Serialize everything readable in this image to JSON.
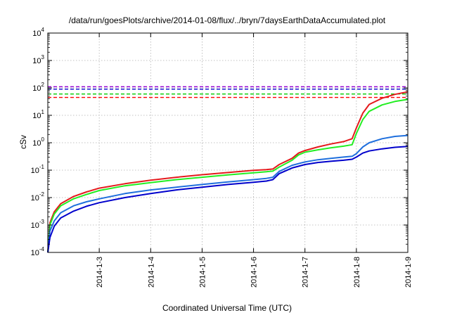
{
  "chart_data": {
    "type": "line",
    "title": "/data/run/goesPlots/archive/2014-01-08/flux/../bryn/7daysEarthDataAccumulated.plot",
    "xlabel": "Coordinated Universal Time (UTC)",
    "ylabel": "cSv",
    "x_range": [
      "2014-01-02",
      "2014-01-09"
    ],
    "x_ticks": [
      "2014-1-3",
      "2014-1-4",
      "2014-1-5",
      "2014-1-6",
      "2014-1-7",
      "2014-1-8",
      "2014-1-9"
    ],
    "y_scale": "log",
    "y_range": [
      0.0001,
      10000
    ],
    "y_ticks": [
      {
        "base": "10",
        "exp": "-4"
      },
      {
        "base": "10",
        "exp": "-3"
      },
      {
        "base": "10",
        "exp": "-2"
      },
      {
        "base": "10",
        "exp": "-1"
      },
      {
        "base": "10",
        "exp": "0"
      },
      {
        "base": "10",
        "exp": "1"
      },
      {
        "base": "10",
        "exp": "2"
      },
      {
        "base": "10",
        "exp": "3"
      },
      {
        "base": "10",
        "exp": "4"
      }
    ],
    "grid": true,
    "thresholds": [
      {
        "value": 110,
        "color": "#9400d3"
      },
      {
        "value": 90,
        "color": "#0000cc"
      },
      {
        "value": 60,
        "color": "#00cc00"
      },
      {
        "value": 45,
        "color": "#ff0000"
      }
    ],
    "series": [
      {
        "color": "#e41a1c",
        "points": [
          [
            "2014-01-02T00:00",
            0.0001
          ],
          [
            "2014-01-02T01:00",
            0.0012
          ],
          [
            "2014-01-02T03:00",
            0.003
          ],
          [
            "2014-01-02T06:00",
            0.006
          ],
          [
            "2014-01-02T12:00",
            0.011
          ],
          [
            "2014-01-02T18:00",
            0.016
          ],
          [
            "2014-01-03T00:00",
            0.022
          ],
          [
            "2014-01-03T12:00",
            0.032
          ],
          [
            "2014-01-04T00:00",
            0.043
          ],
          [
            "2014-01-04T12:00",
            0.055
          ],
          [
            "2014-01-05T00:00",
            0.068
          ],
          [
            "2014-01-05T12:00",
            0.082
          ],
          [
            "2014-01-06T00:00",
            0.098
          ],
          [
            "2014-01-06T06:00",
            0.105
          ],
          [
            "2014-01-06T09:00",
            0.11
          ],
          [
            "2014-01-06T12:00",
            0.16
          ],
          [
            "2014-01-06T18:00",
            0.27
          ],
          [
            "2014-01-06T21:00",
            0.42
          ],
          [
            "2014-01-07T00:00",
            0.52
          ],
          [
            "2014-01-07T06:00",
            0.7
          ],
          [
            "2014-01-07T12:00",
            0.9
          ],
          [
            "2014-01-07T18:00",
            1.1
          ],
          [
            "2014-01-07T22:00",
            1.4
          ],
          [
            "2014-01-08T00:00",
            3.5
          ],
          [
            "2014-01-08T03:00",
            12
          ],
          [
            "2014-01-08T06:00",
            25
          ],
          [
            "2014-01-08T12:00",
            42
          ],
          [
            "2014-01-08T18:00",
            58
          ],
          [
            "2014-01-09T00:00",
            72
          ]
        ]
      },
      {
        "color": "#22ee22",
        "points": [
          [
            "2014-01-02T00:00",
            0.0001
          ],
          [
            "2014-01-02T01:00",
            0.001
          ],
          [
            "2014-01-02T03:00",
            0.0025
          ],
          [
            "2014-01-02T06:00",
            0.005
          ],
          [
            "2014-01-02T12:00",
            0.009
          ],
          [
            "2014-01-02T18:00",
            0.013
          ],
          [
            "2014-01-03T00:00",
            0.018
          ],
          [
            "2014-01-03T12:00",
            0.027
          ],
          [
            "2014-01-04T00:00",
            0.035
          ],
          [
            "2014-01-04T12:00",
            0.045
          ],
          [
            "2014-01-05T00:00",
            0.055
          ],
          [
            "2014-01-05T12:00",
            0.067
          ],
          [
            "2014-01-06T00:00",
            0.08
          ],
          [
            "2014-01-06T06:00",
            0.088
          ],
          [
            "2014-01-06T09:00",
            0.092
          ],
          [
            "2014-01-06T12:00",
            0.13
          ],
          [
            "2014-01-06T18:00",
            0.23
          ],
          [
            "2014-01-06T21:00",
            0.36
          ],
          [
            "2014-01-07T00:00",
            0.45
          ],
          [
            "2014-01-07T06:00",
            0.55
          ],
          [
            "2014-01-07T12:00",
            0.65
          ],
          [
            "2014-01-07T18:00",
            0.75
          ],
          [
            "2014-01-07T22:00",
            0.85
          ],
          [
            "2014-01-08T00:00",
            2.2
          ],
          [
            "2014-01-08T03:00",
            7
          ],
          [
            "2014-01-08T06:00",
            14
          ],
          [
            "2014-01-08T12:00",
            24
          ],
          [
            "2014-01-08T18:00",
            32
          ],
          [
            "2014-01-09T00:00",
            38
          ]
        ]
      },
      {
        "color": "#1f6fdd",
        "points": [
          [
            "2014-01-02T00:00",
            0.0001
          ],
          [
            "2014-01-02T01:00",
            0.0006
          ],
          [
            "2014-01-02T03:00",
            0.0014
          ],
          [
            "2014-01-02T06:00",
            0.0028
          ],
          [
            "2014-01-02T12:00",
            0.005
          ],
          [
            "2014-01-02T18:00",
            0.007
          ],
          [
            "2014-01-03T00:00",
            0.009
          ],
          [
            "2014-01-03T12:00",
            0.014
          ],
          [
            "2014-01-04T00:00",
            0.019
          ],
          [
            "2014-01-04T12:00",
            0.024
          ],
          [
            "2014-01-05T00:00",
            0.03
          ],
          [
            "2014-01-05T12:00",
            0.037
          ],
          [
            "2014-01-06T00:00",
            0.045
          ],
          [
            "2014-01-06T06:00",
            0.05
          ],
          [
            "2014-01-06T09:00",
            0.055
          ],
          [
            "2014-01-06T12:00",
            0.09
          ],
          [
            "2014-01-06T18:00",
            0.15
          ],
          [
            "2014-01-07T00:00",
            0.2
          ],
          [
            "2014-01-07T06:00",
            0.24
          ],
          [
            "2014-01-07T12:00",
            0.27
          ],
          [
            "2014-01-07T18:00",
            0.3
          ],
          [
            "2014-01-07T22:00",
            0.32
          ],
          [
            "2014-01-08T00:00",
            0.4
          ],
          [
            "2014-01-08T03:00",
            0.7
          ],
          [
            "2014-01-08T06:00",
            1.0
          ],
          [
            "2014-01-08T12:00",
            1.4
          ],
          [
            "2014-01-08T18:00",
            1.7
          ],
          [
            "2014-01-09T00:00",
            1.85
          ]
        ]
      },
      {
        "color": "#0000cc",
        "points": [
          [
            "2014-01-02T00:00",
            0.0001
          ],
          [
            "2014-01-02T01:00",
            0.00035
          ],
          [
            "2014-01-02T03:00",
            0.0009
          ],
          [
            "2014-01-02T06:00",
            0.0018
          ],
          [
            "2014-01-02T12:00",
            0.0032
          ],
          [
            "2014-01-02T18:00",
            0.0048
          ],
          [
            "2014-01-03T00:00",
            0.0065
          ],
          [
            "2014-01-03T12:00",
            0.01
          ],
          [
            "2014-01-04T00:00",
            0.014
          ],
          [
            "2014-01-04T12:00",
            0.019
          ],
          [
            "2014-01-05T00:00",
            0.024
          ],
          [
            "2014-01-05T12:00",
            0.03
          ],
          [
            "2014-01-06T00:00",
            0.036
          ],
          [
            "2014-01-06T06:00",
            0.04
          ],
          [
            "2014-01-06T09:00",
            0.045
          ],
          [
            "2014-01-06T12:00",
            0.075
          ],
          [
            "2014-01-06T18:00",
            0.12
          ],
          [
            "2014-01-07T00:00",
            0.16
          ],
          [
            "2014-01-07T06:00",
            0.19
          ],
          [
            "2014-01-07T12:00",
            0.21
          ],
          [
            "2014-01-07T18:00",
            0.23
          ],
          [
            "2014-01-07T22:00",
            0.25
          ],
          [
            "2014-01-08T00:00",
            0.3
          ],
          [
            "2014-01-08T03:00",
            0.42
          ],
          [
            "2014-01-08T06:00",
            0.5
          ],
          [
            "2014-01-08T12:00",
            0.6
          ],
          [
            "2014-01-08T18:00",
            0.68
          ],
          [
            "2014-01-09T00:00",
            0.73
          ]
        ]
      }
    ]
  }
}
